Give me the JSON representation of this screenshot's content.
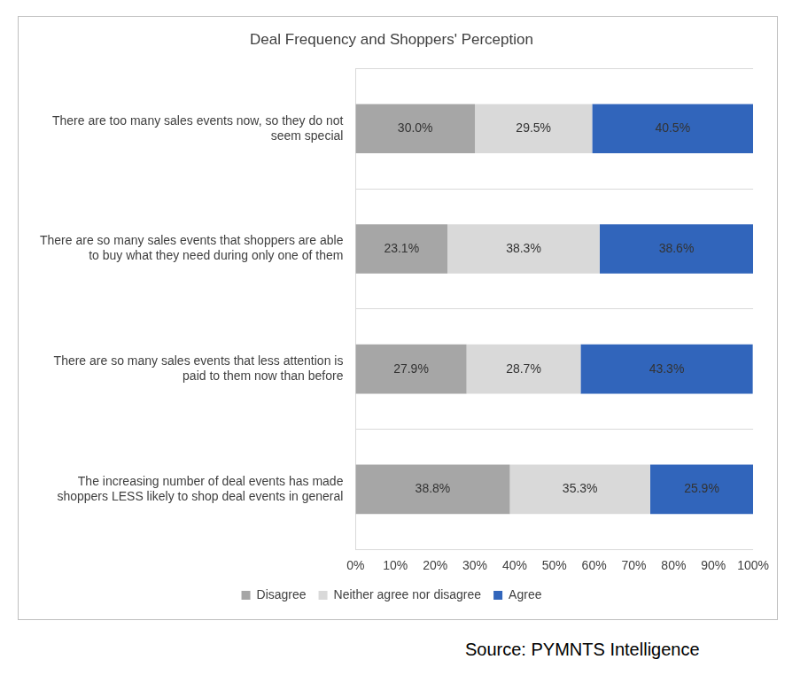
{
  "chart_data": {
    "type": "bar",
    "title": "Deal Frequency and Shoppers' Perception",
    "orientation": "horizontal",
    "stacked": true,
    "data_labels": true,
    "grid": true,
    "legend": "bottom",
    "categories": [
      "There are too many sales events now, so they do not seem special",
      "There are so many sales events that shoppers are able to buy what they need during only one of them",
      "There are so many sales events that less attention is paid to them now than before",
      "The increasing number of deal events has made shoppers LESS likely to shop deal events in general"
    ],
    "series": [
      {
        "name": "Disagree",
        "color": "#a6a6a6",
        "values": [
          30.0,
          23.1,
          27.9,
          38.8
        ],
        "value_labels": [
          "30.0%",
          "23.1%",
          "27.9%",
          "38.8%"
        ]
      },
      {
        "name": "Neither agree nor disagree",
        "color": "#d9d9d9",
        "values": [
          29.5,
          38.3,
          28.7,
          35.3
        ],
        "value_labels": [
          "29.5%",
          "38.3%",
          "28.7%",
          "35.3%"
        ]
      },
      {
        "name": "Agree",
        "color": "#3165bb",
        "values": [
          40.5,
          38.6,
          43.3,
          25.9
        ],
        "value_labels": [
          "40.5%",
          "38.6%",
          "43.3%",
          "25.9%"
        ]
      }
    ],
    "xlim": [
      0,
      100
    ],
    "xticks": [
      {
        "value": 0,
        "label": "0%"
      },
      {
        "value": 10,
        "label": "10%"
      },
      {
        "value": 20,
        "label": "20%"
      },
      {
        "value": 30,
        "label": "30%"
      },
      {
        "value": 40,
        "label": "40%"
      },
      {
        "value": 50,
        "label": "50%"
      },
      {
        "value": 60,
        "label": "60%"
      },
      {
        "value": 70,
        "label": "70%"
      },
      {
        "value": 80,
        "label": "80%"
      },
      {
        "value": 90,
        "label": "90%"
      },
      {
        "value": 100,
        "label": "100%"
      }
    ],
    "source": "Source: PYMNTS Intelligence"
  }
}
